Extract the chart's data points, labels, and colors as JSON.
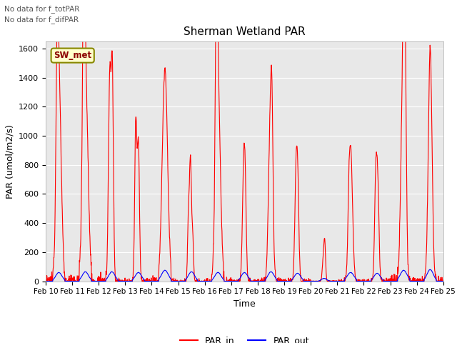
{
  "title": "Sherman Wetland PAR",
  "ylabel": "PAR (umol/m2/s)",
  "xlabel": "Time",
  "annotation_line1": "No data for f_totPAR",
  "annotation_line2": "No data for f_difPAR",
  "legend_label": "SW_met",
  "par_in_color": "red",
  "par_out_color": "blue",
  "ylim": [
    0,
    1650
  ],
  "yticks": [
    0,
    200,
    400,
    600,
    800,
    1000,
    1200,
    1400,
    1600
  ],
  "xstart": 10,
  "xend": 25,
  "bg_color": "#e8e8e8",
  "days": 15,
  "points_per_day": 96,
  "figwidth": 6.4,
  "figheight": 4.8,
  "dpi": 100
}
